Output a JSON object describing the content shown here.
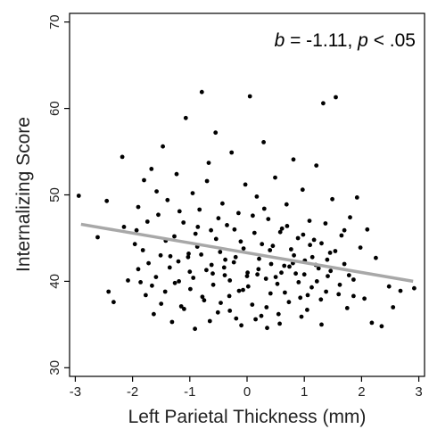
{
  "chart_data": {
    "type": "scatter",
    "xlabel": "Left Parietal Thickness (mm)",
    "ylabel": "Internalizing Score",
    "xlim": [
      -3.1,
      3.1
    ],
    "ylim": [
      29,
      71
    ],
    "x_ticks": [
      -3,
      -2,
      -1,
      0,
      1,
      2,
      3
    ],
    "y_ticks": [
      30,
      40,
      50,
      60,
      70
    ],
    "grid": false,
    "annotation": {
      "b_symbol": "b",
      "b_value": " = -1.11, ",
      "p_symbol": "p",
      "p_value": " < .05"
    },
    "trend_line": {
      "x": [
        -2.9,
        2.9
      ],
      "y": [
        46.6,
        40.0
      ]
    },
    "points": [
      [
        -2.94,
        49.9
      ],
      [
        -2.61,
        45.1
      ],
      [
        -2.45,
        49.3
      ],
      [
        -2.42,
        38.8
      ],
      [
        -2.33,
        37.6
      ],
      [
        -2.18,
        54.4
      ],
      [
        -2.15,
        46.3
      ],
      [
        -2.08,
        40.1
      ],
      [
        -1.96,
        44.3
      ],
      [
        -1.93,
        45.9
      ],
      [
        -1.9,
        48.6
      ],
      [
        -1.86,
        39.9
      ],
      [
        -1.8,
        51.7
      ],
      [
        -1.77,
        38.4
      ],
      [
        -1.72,
        42.1
      ],
      [
        -1.67,
        53.0
      ],
      [
        -1.63,
        36.2
      ],
      [
        -1.59,
        40.5
      ],
      [
        -1.55,
        47.7
      ],
      [
        -1.51,
        43.0
      ],
      [
        -1.47,
        55.6
      ],
      [
        -1.43,
        38.8
      ],
      [
        -1.39,
        49.4
      ],
      [
        -1.35,
        41.6
      ],
      [
        -1.31,
        35.3
      ],
      [
        -1.27,
        45.2
      ],
      [
        -1.23,
        52.4
      ],
      [
        -1.19,
        40.0
      ],
      [
        -1.15,
        37.1
      ],
      [
        -1.11,
        46.8
      ],
      [
        -1.07,
        58.9
      ],
      [
        -1.03,
        42.8
      ],
      [
        -0.99,
        39.1
      ],
      [
        -0.95,
        50.2
      ],
      [
        -0.91,
        34.5
      ],
      [
        -0.87,
        44.0
      ],
      [
        -0.83,
        48.3
      ],
      [
        -0.79,
        61.9
      ],
      [
        -0.75,
        37.8
      ],
      [
        -0.71,
        41.3
      ],
      [
        -0.67,
        53.7
      ],
      [
        -0.63,
        45.9
      ],
      [
        -0.59,
        39.6
      ],
      [
        -0.55,
        57.2
      ],
      [
        -0.51,
        36.4
      ],
      [
        -0.47,
        43.4
      ],
      [
        -0.43,
        49.0
      ],
      [
        -0.39,
        40.7
      ],
      [
        -0.35,
        46.5
      ],
      [
        -0.31,
        38.3
      ],
      [
        -0.27,
        54.9
      ],
      [
        -0.23,
        42.2
      ],
      [
        -0.19,
        35.7
      ],
      [
        -0.15,
        47.9
      ],
      [
        -0.11,
        44.6
      ],
      [
        -0.07,
        39.0
      ],
      [
        -0.03,
        51.2
      ],
      [
        0.01,
        41.0
      ],
      [
        0.05,
        61.4
      ],
      [
        0.09,
        37.3
      ],
      [
        0.13,
        45.6
      ],
      [
        0.17,
        49.8
      ],
      [
        0.21,
        42.6
      ],
      [
        0.25,
        36.0
      ],
      [
        0.29,
        56.1
      ],
      [
        0.33,
        40.3
      ],
      [
        0.37,
        47.2
      ],
      [
        0.41,
        38.6
      ],
      [
        0.45,
        44.1
      ],
      [
        0.49,
        52.0
      ],
      [
        0.53,
        39.7
      ],
      [
        0.57,
        35.1
      ],
      [
        0.61,
        46.1
      ],
      [
        0.65,
        41.8
      ],
      [
        0.69,
        48.9
      ],
      [
        0.73,
        37.6
      ],
      [
        0.77,
        43.7
      ],
      [
        0.81,
        54.1
      ],
      [
        0.85,
        40.9
      ],
      [
        0.89,
        45.0
      ],
      [
        0.93,
        38.1
      ],
      [
        0.97,
        50.6
      ],
      [
        1.01,
        42.4
      ],
      [
        1.05,
        36.7
      ],
      [
        1.09,
        47.0
      ],
      [
        1.13,
        39.3
      ],
      [
        1.17,
        44.8
      ],
      [
        1.21,
        53.4
      ],
      [
        1.25,
        41.5
      ],
      [
        1.29,
        37.9
      ],
      [
        1.33,
        60.6
      ],
      [
        1.37,
        46.7
      ],
      [
        1.41,
        40.6
      ],
      [
        1.45,
        43.3
      ],
      [
        1.49,
        49.5
      ],
      [
        1.55,
        61.3
      ],
      [
        1.6,
        38.5
      ],
      [
        1.65,
        45.3
      ],
      [
        1.7,
        42.0
      ],
      [
        1.75,
        36.9
      ],
      [
        1.8,
        47.4
      ],
      [
        1.86,
        40.2
      ],
      [
        1.92,
        49.7
      ],
      [
        1.98,
        43.9
      ],
      [
        2.05,
        38.0
      ],
      [
        2.1,
        46.0
      ],
      [
        2.18,
        35.2
      ],
      [
        2.25,
        42.7
      ],
      [
        2.35,
        34.8
      ],
      [
        2.48,
        39.4
      ],
      [
        2.55,
        37.0
      ],
      [
        2.68,
        38.9
      ],
      [
        2.92,
        39.2
      ],
      [
        -1.9,
        41.4
      ],
      [
        -1.82,
        43.6
      ],
      [
        -1.74,
        46.9
      ],
      [
        -1.66,
        39.5
      ],
      [
        -1.58,
        50.4
      ],
      [
        -1.5,
        37.4
      ],
      [
        -1.42,
        44.7
      ],
      [
        -1.34,
        42.9
      ],
      [
        -1.26,
        39.8
      ],
      [
        -1.18,
        48.1
      ],
      [
        -1.1,
        36.8
      ],
      [
        -1.02,
        43.2
      ],
      [
        -0.94,
        40.4
      ],
      [
        -0.86,
        46.3
      ],
      [
        -0.78,
        38.2
      ],
      [
        -0.7,
        51.6
      ],
      [
        -0.62,
        41.9
      ],
      [
        -0.54,
        44.9
      ],
      [
        -0.46,
        37.5
      ],
      [
        -0.38,
        42.5
      ],
      [
        -0.3,
        40.1
      ],
      [
        -0.22,
        46.0
      ],
      [
        -0.14,
        38.9
      ],
      [
        -0.06,
        43.8
      ],
      [
        0.02,
        39.4
      ],
      [
        0.1,
        47.6
      ],
      [
        0.18,
        40.8
      ],
      [
        0.26,
        44.3
      ],
      [
        0.34,
        37.0
      ],
      [
        0.42,
        42.0
      ],
      [
        0.5,
        40.5
      ],
      [
        0.58,
        45.7
      ],
      [
        0.66,
        38.7
      ],
      [
        0.74,
        41.7
      ],
      [
        0.82,
        43.0
      ],
      [
        0.9,
        39.9
      ],
      [
        0.98,
        45.4
      ],
      [
        1.06,
        38.4
      ],
      [
        1.14,
        42.8
      ],
      [
        1.22,
        40.0
      ],
      [
        1.3,
        44.4
      ],
      [
        1.38,
        38.8
      ],
      [
        1.46,
        41.2
      ],
      [
        1.54,
        43.5
      ],
      [
        1.62,
        39.6
      ],
      [
        1.7,
        45.9
      ],
      [
        1.78,
        40.7
      ],
      [
        1.86,
        38.3
      ],
      [
        -1.2,
        42.3
      ],
      [
        -1.0,
        41.1
      ],
      [
        -0.8,
        43.1
      ],
      [
        -0.6,
        40.9
      ],
      [
        -0.4,
        41.6
      ],
      [
        -0.2,
        42.8
      ],
      [
        0.0,
        40.6
      ],
      [
        0.2,
        41.4
      ],
      [
        0.4,
        43.6
      ],
      [
        0.6,
        41.0
      ],
      [
        0.8,
        42.1
      ],
      [
        1.0,
        40.8
      ],
      [
        1.2,
        41.9
      ],
      [
        1.4,
        42.5
      ],
      [
        -0.9,
        45.5
      ],
      [
        -0.5,
        47.3
      ],
      [
        0.3,
        48.4
      ],
      [
        0.7,
        46.4
      ],
      [
        1.1,
        44.2
      ],
      [
        -0.3,
        36.6
      ],
      [
        0.15,
        35.6
      ],
      [
        0.55,
        36.2
      ],
      [
        -0.65,
        35.4
      ],
      [
        0.95,
        35.9
      ],
      [
        0.35,
        34.6
      ],
      [
        -0.1,
        34.9
      ],
      [
        1.3,
        35.0
      ]
    ]
  }
}
